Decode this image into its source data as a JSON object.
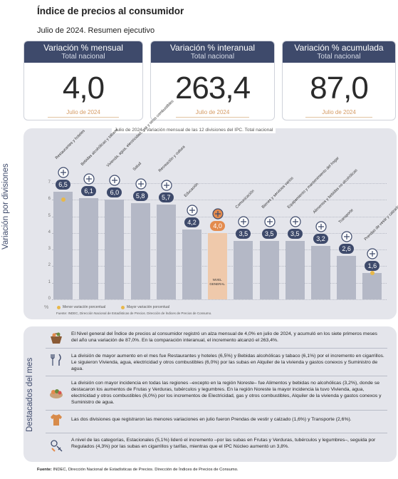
{
  "header": {
    "title": "Índice de precios al consumidor",
    "subtitle": "Julio de 2024. Resumen ejecutivo"
  },
  "cards": [
    {
      "label": "Variación % mensual",
      "sub": "Total nacional",
      "value": "4,0",
      "date": "Julio de 2024"
    },
    {
      "label": "Variación % interanual",
      "sub": "Total nacional",
      "value": "263,4",
      "date": "Julio de 2024"
    },
    {
      "label": "Variación % acumulada",
      "sub": "Total nacional",
      "value": "87,0",
      "date": "Julio de 2024"
    }
  ],
  "chart_data": {
    "type": "bar",
    "title": "Julio de 2024 - Variación mensual de las 12 divisiones del IPC. Total nacional",
    "ylabel": "Variación por divisiones",
    "unit": "%",
    "ylim": [
      0,
      7
    ],
    "yticks": [
      0,
      1,
      2,
      3,
      4,
      5,
      6,
      7
    ],
    "categories": [
      "Restaurantes y hoteles",
      "Bebidas alcohólicas y tabaco",
      "Vivienda, agua, electricidad, gas y otros combustibles",
      "Salud",
      "Recreación y cultura",
      "Educación",
      "Nivel general",
      "Comunicación",
      "Bienes y servicios varios",
      "Equipamiento y mantenimiento del hogar",
      "Alimentos y bebidas no alcohólicas",
      "Transporte",
      "Prendas de vestir y calzado"
    ],
    "values": [
      6.5,
      6.1,
      6.0,
      5.8,
      5.7,
      4.2,
      4.0,
      3.5,
      3.5,
      3.5,
      3.2,
      2.6,
      1.6
    ],
    "value_labels": [
      "6,5",
      "6,1",
      "6,0",
      "5,8",
      "5,7",
      "4,2",
      "4,0",
      "3,5",
      "3,5",
      "3,5",
      "3,2",
      "2,6",
      "1,6"
    ],
    "highlight_index": 6,
    "nivel_bar_label": "NIVEL GENERAL",
    "max_region_marker_index": 0,
    "min_region_marker_index": 12,
    "legend": {
      "min": "Menor variación porcentual",
      "max": "Mayor variación porcentual"
    },
    "source": "Fuente: INDEC, Dirección Nacional de Estadísticas de Precios. Dirección de Índices de Precios de Consumo."
  },
  "destacados": {
    "title": "Destacados del mes",
    "items": [
      {
        "icon": "shopping-basket-icon",
        "text": "El Nivel general del Índice de precios al consumidor registró un alza mensual de 4,0% en julio de 2024, y acumuló en los siete primeros meses del año una variación de 87,0%. En la comparación interanual, el incremento alcanzó el 263,4%."
      },
      {
        "icon": "restaurant-icon",
        "text": "La división de mayor aumento en el mes fue Restaurantes y hoteles (6,5%) y Bebidas alcohólicas y tabaco (6,1%) por el incremento en cigarrillos. Le siguieron Vivienda, agua, electricidad y otros combustibles (6,0%) por las subas en Alquiler de la vivienda y gastos conexos y Suministro de agua."
      },
      {
        "icon": "food-basket-icon",
        "text": "La división con mayor incidencia en todas las regiones –excepto en la región Noreste– fue Alimentos y bebidas no alcohólicas (3,2%), donde se destacaron los aumentos de Frutas y Verduras, tubérculos y legumbres. En la región Noreste la mayor incidencia la tuvo Vivienda, agua, electricidad y otros combustibles (6,0%) por los incrementos de Electricidad, gas y otros combustibles, Alquiler de la vivienda y gastos conexos y Suministro de agua."
      },
      {
        "icon": "clothing-icon",
        "text": "Las dos divisiones que registraron las menores variaciones en julio fueron Prendas de vestir y calzado (1,6%) y Transporte (2,6%)."
      },
      {
        "icon": "seasonal-icon",
        "text": "A nivel de las categorías, Estacionales (5,1%) lideró el incremento –por las subas en Frutas y Verduras, tubérculos y legumbres–, seguida por Regulados (4,3%) por las subas en cigarrillos y tarifas, mientras que el IPC Núcleo aumentó un 3,8%."
      }
    ]
  },
  "footer": {
    "source_label": "Fuente:",
    "source_text": "INDEC, Dirección Nacional de Estadísticas de Precios. Dirección de Índices de Precios de Consumo."
  },
  "colors": {
    "navy": "#3e4a6b",
    "orange": "#e38b4e",
    "bar": "#b4b8c6",
    "bar_highlight": "#efc9ab",
    "marker": "#e8b84a"
  }
}
